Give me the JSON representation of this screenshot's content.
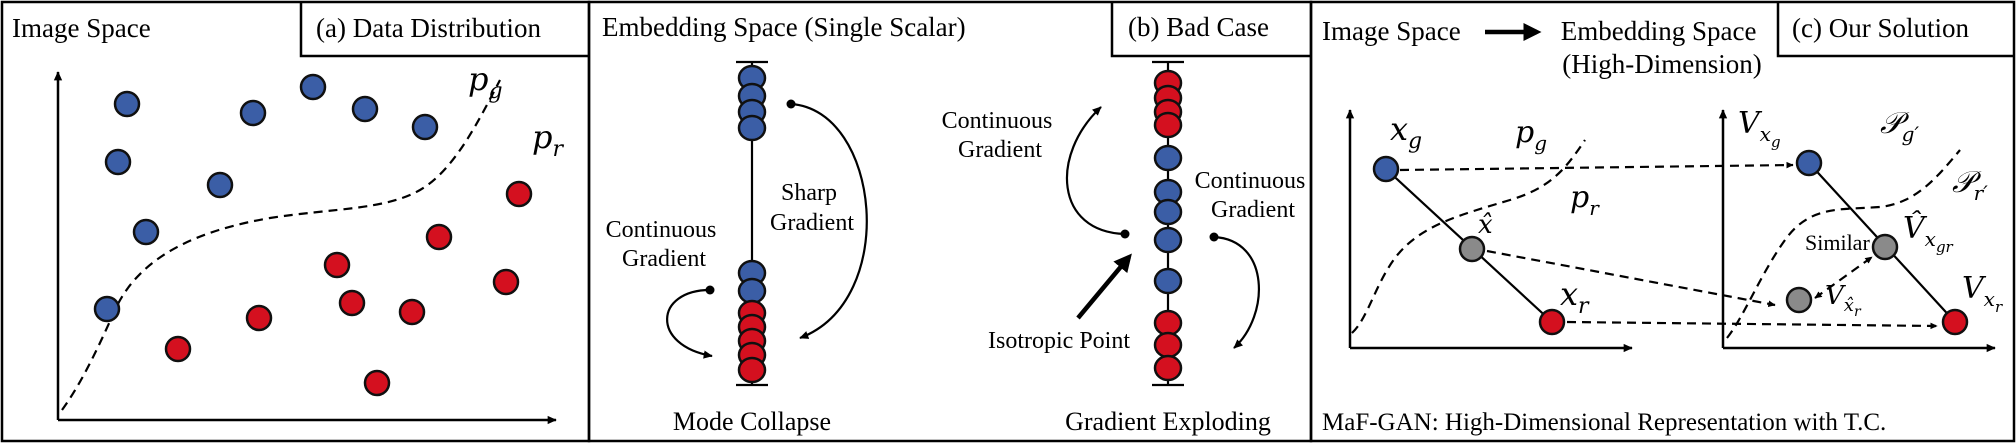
{
  "panel_a": {
    "corner_label": "Image Space",
    "tab_title": "(a) Data Distribution",
    "p_g": "p",
    "p_g_sub": "g",
    "p_r": "p",
    "p_r_sub": "r"
  },
  "panel_b": {
    "header": "Embedding  Space (Single Scalar)",
    "tab_title": "(b) Bad Case",
    "continuous_gradient_left": [
      "Continuous",
      "Gradient"
    ],
    "sharp_gradient": [
      "Sharp",
      "Gradient"
    ],
    "mode_collapse": "Mode Collapse",
    "continuous_gradient_top": [
      "Continuous",
      "Gradient"
    ],
    "continuous_gradient_right": [
      "Continuous",
      "Gradient"
    ],
    "isotropic_point": "Isotropic Point",
    "gradient_exploding": "Gradient Exploding"
  },
  "panel_c": {
    "header_left": "Image Space",
    "header_right": [
      "Embedding  Space",
      "(High-Dimension)"
    ],
    "tab_title": "(c) Our Solution",
    "x_g": "x",
    "x_g_sub": "g",
    "x_hat": "x̂",
    "x_r": "x",
    "x_r_sub": "r",
    "p_g": "p",
    "p_g_sub": "g",
    "p_r": "p",
    "p_r_sub": "r",
    "V_xg": "V",
    "V_xg_sub": "x",
    "V_xg_subsub": "g",
    "P_g_prime": "𝒫",
    "P_g_prime_sub": "g′",
    "P_r_prime": "𝒫",
    "P_r_prime_sub": "r′",
    "similar": "Similar",
    "V_hat_xgr": "V̂",
    "V_hat_xgr_sub": "x",
    "V_hat_xgr_subsub": "gr",
    "V_xhat_r": "V",
    "V_xhat_r_sub": "x̂",
    "V_xhat_r_subsub": "r",
    "V_xr": "V",
    "V_xr_sub": "x",
    "V_xr_subsub": "r",
    "caption": "MaF-GAN:  High-Dimensional Representation  with T.C."
  },
  "colors": {
    "blue": "#3b5ea6",
    "red": "#d4101f",
    "grey": "#8a8a8a"
  }
}
